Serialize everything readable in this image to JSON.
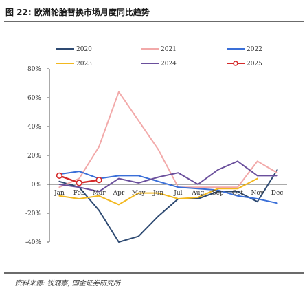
{
  "figure": {
    "title": "图 22: 欧洲轮胎替换市场月度同比趋势",
    "source": "资料来源: 锐观察, 国金证券研究所"
  },
  "chart_data": {
    "type": "line",
    "categories": [
      "Jan",
      "Feb",
      "Mar",
      "Apr",
      "May",
      "Jun",
      "Jul",
      "Aug",
      "Sep",
      "Oct",
      "Nov",
      "Dec"
    ],
    "ylim": [
      -40,
      80
    ],
    "yticks": [
      "80%",
      "60%",
      "40%",
      "20%",
      "0%",
      "-20%",
      "-40%"
    ],
    "ytick_values": [
      80,
      60,
      40,
      20,
      0,
      -20,
      -40
    ],
    "legend_position": "top",
    "grid": false,
    "series": [
      {
        "name": "2020",
        "color": "#2e4a72",
        "values": [
          2,
          -2,
          -18,
          -40,
          -36,
          -22,
          -10,
          -10,
          -5,
          -5,
          -12,
          10
        ]
      },
      {
        "name": "2021",
        "color": "#f2a9a9",
        "values": [
          -2,
          4,
          26,
          64,
          44,
          24,
          -2,
          -2,
          -2,
          -2,
          16,
          8
        ]
      },
      {
        "name": "2022",
        "color": "#3a6fd8",
        "values": [
          7,
          9,
          4,
          6,
          6,
          2,
          -2,
          -3,
          -4,
          -8,
          -10,
          -13
        ]
      },
      {
        "name": "2023",
        "color": "#f2b81f",
        "values": [
          -8,
          -10,
          -8,
          -14,
          -6,
          -6,
          -10,
          -9,
          -3,
          -3,
          4,
          null
        ]
      },
      {
        "name": "2024",
        "color": "#6a4f9c",
        "values": [
          0,
          -2,
          -5,
          4,
          1,
          5,
          8,
          0,
          10,
          16,
          6,
          6
        ]
      },
      {
        "name": "2025",
        "color": "#d42a2a",
        "values": [
          6,
          1,
          3,
          null,
          null,
          null,
          null,
          null,
          null,
          null,
          null,
          null
        ]
      }
    ]
  }
}
